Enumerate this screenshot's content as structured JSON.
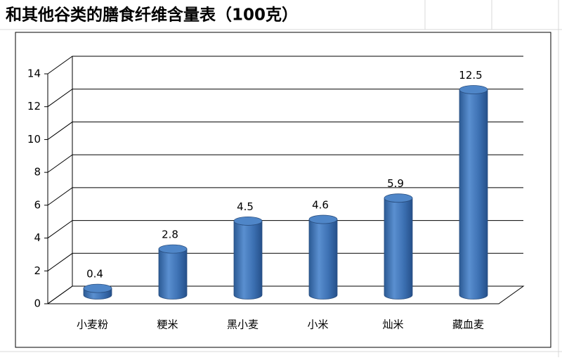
{
  "chart_data": {
    "type": "bar",
    "title": "和其他谷类的膳食纤维含量表（100克）",
    "categories": [
      "小麦粉",
      "粳米",
      "黑小麦",
      "小米",
      "灿米",
      "藏血麦"
    ],
    "values": [
      0.4,
      2.8,
      4.5,
      4.6,
      5.9,
      12.5
    ],
    "color": "#4a7ebb",
    "ylim": [
      0,
      14
    ],
    "yticks": [
      0,
      2,
      4,
      6,
      8,
      10,
      12,
      14
    ],
    "grid": true
  }
}
